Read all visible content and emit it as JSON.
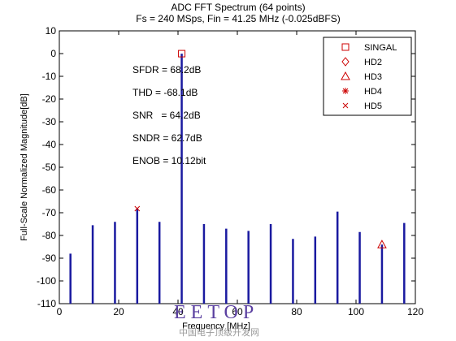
{
  "chart_data": {
    "type": "bar",
    "title": "ADC FFT Spectrum (64 points)",
    "subtitle": "Fs = 240 MSps, Fin = 41.25 MHz (-0.025dBFS)",
    "xlabel": "Frequency [MHz]",
    "ylabel": "Full-Scale Normalized Magnitude[dB]",
    "xlim": [
      0,
      120
    ],
    "ylim": [
      -110,
      10
    ],
    "xticks": [
      0,
      20,
      40,
      60,
      80,
      100,
      120
    ],
    "yticks": [
      10,
      0,
      -10,
      -20,
      -30,
      -40,
      -50,
      -60,
      -70,
      -80,
      -90,
      -100,
      -110
    ],
    "grid": false,
    "legend_position": "top-right",
    "baseline": -110,
    "spectrum": {
      "name": "",
      "x": [
        3.75,
        11.25,
        18.75,
        26.25,
        33.75,
        41.25,
        48.75,
        56.25,
        63.75,
        71.25,
        78.75,
        86.25,
        93.75,
        101.25,
        108.75,
        116.25
      ],
      "values": [
        -88,
        -75.5,
        -74,
        -68.2,
        -74,
        -0.025,
        -75,
        -77,
        -78,
        -75,
        -81.5,
        -80.5,
        -69.5,
        -78.5,
        -84,
        -74.5
      ]
    },
    "markers": [
      {
        "name": "SINGAL",
        "symbol": "square",
        "x": 41.25,
        "y": -0.025
      },
      {
        "name": "HD5",
        "symbol": "x",
        "x": 26.25,
        "y": -68.2
      },
      {
        "name": "HD3",
        "symbol": "triangle",
        "x": 108.75,
        "y": -84
      }
    ],
    "legend": [
      {
        "name": "SINGAL",
        "symbol": "square"
      },
      {
        "name": "HD2",
        "symbol": "diamond"
      },
      {
        "name": "HD3",
        "symbol": "triangle"
      },
      {
        "name": "HD4",
        "symbol": "star"
      },
      {
        "name": "HD5",
        "symbol": "x"
      }
    ],
    "annotations": [
      "SFDR = 68.2dB",
      "THD = -68.1dB",
      "SNR   = 64.2dB",
      "SNDR = 62.7dB",
      "ENOB = 10.12bit"
    ],
    "colors": {
      "stem": "#1a1aa0",
      "marker": "#cc0000",
      "axis": "#000000"
    }
  },
  "watermark": {
    "logo": "EETOP",
    "caption": "中国电子顶级开发网"
  }
}
